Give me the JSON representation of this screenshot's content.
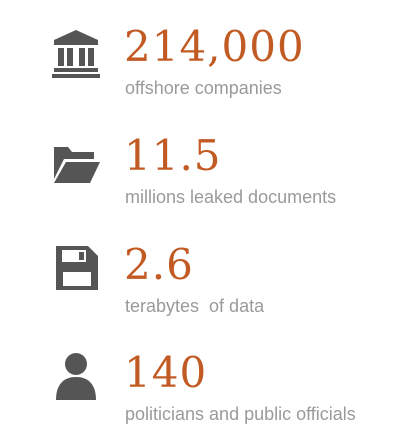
{
  "colors": {
    "value": "#c25a23",
    "label": "#9a9a9a",
    "icon": "#555555"
  },
  "stats": [
    {
      "icon": "bank-icon",
      "value": "214,000",
      "label": "offshore companies"
    },
    {
      "icon": "folder-open-icon",
      "value": "11.5",
      "label": "millions leaked documents"
    },
    {
      "icon": "floppy-disk-icon",
      "value": "2.6",
      "label": "terabytes  of data"
    },
    {
      "icon": "person-icon",
      "value": "140",
      "label": "politicians and public officials"
    }
  ]
}
